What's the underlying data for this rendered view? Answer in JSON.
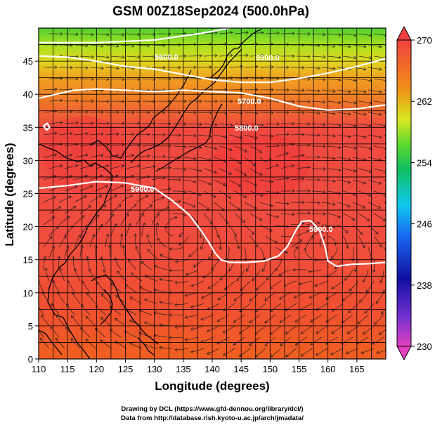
{
  "title": "GSM 00Z18Sep2024 (500.0hPa)",
  "xlabel": "Longitude (degrees)",
  "ylabel": "Latitude  (degrees)",
  "xticks": [
    "110",
    "115",
    "120",
    "125",
    "130",
    "135",
    "140",
    "145",
    "150",
    "155",
    "160",
    "165"
  ],
  "yticks": [
    "0",
    "5",
    "10",
    "15",
    "20",
    "25",
    "30",
    "35",
    "40",
    "45"
  ],
  "colorbar": {
    "ticks": [
      "270",
      "262",
      "254",
      "246",
      "238",
      "230"
    ],
    "colors": {
      "magenta": "#e040c0",
      "purple": "#7030d0",
      "navy": "#1010a0",
      "blue": "#1868f0",
      "cyan": "#10c8f0",
      "green": "#10c060",
      "lime": "#60d830",
      "yellow": "#d8e820",
      "orange": "#f09018",
      "red": "#f04040"
    }
  },
  "contour_labels": [
    "5900.0",
    "5800.0",
    "5700.0",
    "5600.0",
    "5900.0",
    "5900.0"
  ],
  "credits": {
    "line1": "Drawing by DCL (https://www.gfd-dennou.org/library/dcl/)",
    "line2": "Data from http://database.rish.kyoto-u.ac.jp/arch/jmadata/"
  },
  "chart_data": {
    "type": "heatmap",
    "title": "GSM 00Z18Sep2024 (500.0hPa)",
    "xlabel": "Longitude (degrees)",
    "ylabel": "Latitude  (degrees)",
    "xlim": [
      110,
      170
    ],
    "ylim": [
      0,
      50
    ],
    "colorbar_range": [
      230,
      270
    ],
    "contour_levels": [
      5600,
      5700,
      5800,
      5900
    ],
    "contours": [
      {
        "level": 5600,
        "points": [
          [
            110,
            47.8
          ],
          [
            120,
            47.8
          ],
          [
            130,
            48.2
          ],
          [
            138,
            49.2
          ],
          [
            143,
            50
          ]
        ]
      },
      {
        "level": 5700,
        "points": [
          [
            110,
            45.8
          ],
          [
            115,
            45.6
          ],
          [
            120,
            45.0
          ],
          [
            125,
            44.2
          ],
          [
            130,
            43.8
          ],
          [
            135,
            43.0
          ],
          [
            140,
            42.2
          ],
          [
            145,
            41.8
          ],
          [
            150,
            41.8
          ],
          [
            155,
            42.4
          ],
          [
            160,
            43.2
          ],
          [
            165,
            44.2
          ],
          [
            170,
            45.4
          ]
        ]
      },
      {
        "level": 5800,
        "points": [
          [
            110,
            39.4
          ],
          [
            113,
            40.0
          ],
          [
            116,
            40.6
          ],
          [
            120,
            40.8
          ],
          [
            125,
            40.6
          ],
          [
            130,
            40.4
          ],
          [
            135,
            40.6
          ],
          [
            140,
            40.4
          ],
          [
            145,
            40.2
          ],
          [
            150,
            39.4
          ],
          [
            155,
            38.2
          ],
          [
            160,
            37.6
          ],
          [
            165,
            37.8
          ],
          [
            170,
            38.4
          ]
        ]
      },
      {
        "level": 5900,
        "points": [
          [
            110,
            25.8
          ],
          [
            115,
            26.2
          ],
          [
            120,
            26.8
          ],
          [
            125,
            26.6
          ],
          [
            130,
            25.8
          ],
          [
            133,
            24.0
          ],
          [
            136,
            21.8
          ],
          [
            138,
            19.5
          ],
          [
            139.5,
            17.5
          ],
          [
            140.5,
            16.0
          ],
          [
            141.5,
            15.0
          ],
          [
            143,
            14.6
          ],
          [
            146,
            14.6
          ],
          [
            149,
            14.8
          ],
          [
            151.5,
            15.6
          ],
          [
            153,
            17.0
          ],
          [
            154.5,
            19.5
          ],
          [
            155.5,
            20.8
          ],
          [
            157,
            20.9
          ],
          [
            158.5,
            19.5
          ],
          [
            159.5,
            17.0
          ],
          [
            160,
            14.8
          ],
          [
            161.5,
            14.0
          ],
          [
            164,
            14.3
          ],
          [
            167,
            14.4
          ],
          [
            170,
            14.6
          ]
        ]
      },
      {
        "level": 5900,
        "points": [
          [
            110.8,
            35.2
          ],
          [
            111.5,
            35.6
          ],
          [
            111.9,
            35.0
          ],
          [
            111.4,
            34.6
          ],
          [
            110.8,
            35.2
          ]
        ]
      }
    ],
    "grid": true
  }
}
